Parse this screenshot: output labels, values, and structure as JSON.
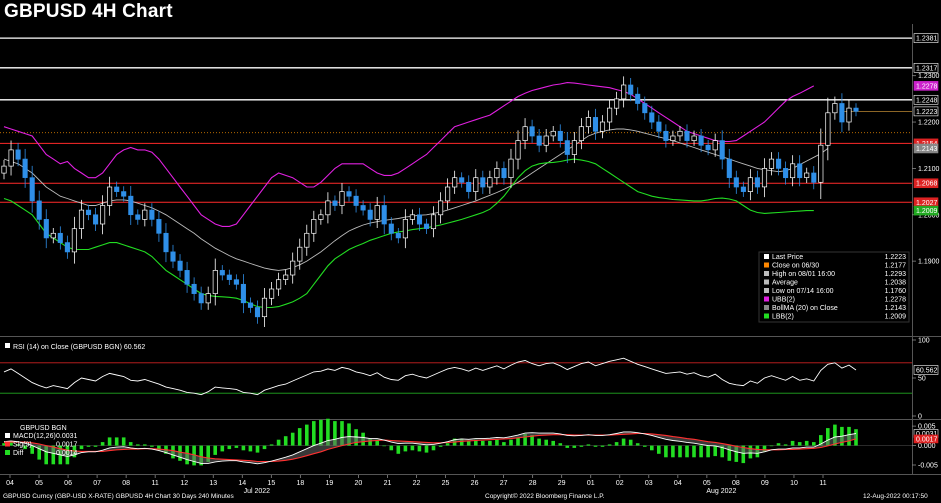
{
  "title": "GBPUSD 4H Chart",
  "footer": {
    "left": "GBPUSD Curncy (GBP-USD X-RATE) GBPUSD 4H Chart 30 Days 240 Minutes",
    "center": "Copyright© 2022 Bloomberg Finance L.P.",
    "right": "12-Aug-2022 00:17:50"
  },
  "colors": {
    "background": "#000000",
    "bull_candle": "#ffffff",
    "bear_candle": "#2f8fe8",
    "upper_band": "#e020e0",
    "middle_band": "#bbbbbb",
    "lower_band": "#22dd22",
    "horizontal_level": "#ff2a2a",
    "resistance_line": "#ffffff",
    "macd_line": "#ffffff",
    "signal_line": "#ff3030",
    "diff_bar": "#22dd22"
  },
  "chart_data": [
    {
      "type": "candlestick",
      "ylim": [
        1.1745,
        1.2405
      ],
      "yticks": [
        1.19,
        1.2,
        1.21,
        1.22,
        1.23
      ],
      "x_day_labels": [
        "04",
        "05",
        "06",
        "07",
        "08",
        "11",
        "12",
        "13",
        "14",
        "15",
        "18",
        "19",
        "20",
        "21",
        "22",
        "25",
        "26",
        "27",
        "28",
        "29",
        "01",
        "02",
        "03",
        "04",
        "05",
        "08",
        "09",
        "10",
        "11"
      ],
      "month_labels": [
        {
          "label": "Jul 2022",
          "day_index": 8.5
        },
        {
          "label": "Aug 2022",
          "day_index": 24.5
        }
      ],
      "resistance_lines": [
        1.2381,
        1.2317,
        1.2248
      ],
      "horizontal_levels": [
        1.2154,
        1.2068,
        1.2027
      ],
      "price_badges": [
        {
          "value": 1.2381,
          "label": "1.2381",
          "bg": "#000000",
          "fg": "#ffffff"
        },
        {
          "value": 1.2317,
          "label": "1.2317",
          "bg": "#000000",
          "fg": "#ffffff"
        },
        {
          "value": 1.2278,
          "label": "1.2278",
          "bg": "#cc22cc",
          "fg": "#ffffff"
        },
        {
          "value": 1.2248,
          "label": "1.2248",
          "bg": "#000000",
          "fg": "#ffffff"
        },
        {
          "value": 1.2223,
          "label": "1.2223",
          "bg": "#000000",
          "fg": "#ffffff"
        },
        {
          "value": 1.2154,
          "label": "1.2154",
          "bg": "#dd2222",
          "fg": "#ffffff"
        },
        {
          "value": 1.2143,
          "label": "1.2143",
          "bg": "#888888",
          "fg": "#000000"
        },
        {
          "value": 1.2068,
          "label": "1.2068",
          "bg": "#dd2222",
          "fg": "#ffffff"
        },
        {
          "value": 1.2027,
          "label": "1.2027",
          "bg": "#dd2222",
          "fg": "#ffffff"
        },
        {
          "value": 1.2009,
          "label": "1.2009",
          "bg": "#22aa22",
          "fg": "#ffffff"
        }
      ],
      "close_prev": 1.2177,
      "legend": [
        {
          "label": "Last Price",
          "value": "1.2223",
          "swatch": "#ffffff"
        },
        {
          "label": "Close on 06/30",
          "value": "1.2177",
          "swatch": "#ff8800"
        },
        {
          "label": "High on 08/01 16:00",
          "value": "1.2293",
          "swatch": "#bbbbbb"
        },
        {
          "label": "Average",
          "value": "1.2038",
          "swatch": "#bbbbbb"
        },
        {
          "label": "Low on 07/14 16:00",
          "value": "1.1760",
          "swatch": "#bbbbbb"
        },
        {
          "label": "UBB(2)",
          "value": "1.2278",
          "swatch": "#e020e0"
        },
        {
          "label": "BollMA (20)  on Close",
          "value": "1.2143",
          "swatch": "#888888"
        },
        {
          "label": "LBB(2)",
          "value": "1.2009",
          "swatch": "#22dd22"
        }
      ],
      "closes": [
        1.2105,
        1.214,
        1.212,
        1.208,
        1.203,
        1.199,
        1.195,
        1.196,
        1.194,
        1.192,
        1.197,
        1.201,
        1.2,
        1.198,
        1.202,
        1.206,
        1.205,
        1.204,
        1.2,
        1.199,
        1.201,
        1.199,
        1.196,
        1.192,
        1.19,
        1.188,
        1.185,
        1.183,
        1.181,
        1.183,
        1.188,
        1.187,
        1.186,
        1.185,
        1.181,
        1.18,
        1.178,
        1.182,
        1.184,
        1.186,
        1.187,
        1.19,
        1.193,
        1.196,
        1.199,
        1.2,
        1.203,
        1.202,
        1.205,
        1.204,
        1.202,
        1.201,
        1.199,
        1.202,
        1.198,
        1.196,
        1.195,
        1.199,
        1.2,
        1.198,
        1.197,
        1.2,
        1.203,
        1.206,
        1.208,
        1.207,
        1.205,
        1.208,
        1.206,
        1.208,
        1.21,
        1.208,
        1.212,
        1.216,
        1.219,
        1.217,
        1.215,
        1.217,
        1.218,
        1.216,
        1.213,
        1.216,
        1.219,
        1.221,
        1.218,
        1.22,
        1.223,
        1.225,
        1.228,
        1.226,
        1.224,
        1.222,
        1.22,
        1.218,
        1.216,
        1.217,
        1.218,
        1.216,
        1.217,
        1.215,
        1.214,
        1.216,
        1.212,
        1.208,
        1.206,
        1.205,
        1.208,
        1.206,
        1.21,
        1.212,
        1.21,
        1.208,
        1.211,
        1.208,
        1.209,
        1.207,
        1.215,
        1.222,
        1.224,
        1.22,
        1.223,
        1.2223
      ],
      "upper_band": [
        1.219,
        1.2185,
        1.218,
        1.2175,
        1.217,
        1.215,
        1.213,
        1.212,
        1.211,
        1.2115,
        1.21,
        1.209,
        1.208,
        1.208,
        1.209,
        1.211,
        1.213,
        1.214,
        1.2145,
        1.214,
        1.214,
        1.2135,
        1.212,
        1.21,
        1.208,
        1.206,
        1.204,
        1.202,
        1.2,
        1.199,
        1.198,
        1.1975,
        1.1975,
        1.198,
        1.2,
        1.202,
        1.204,
        1.206,
        1.208,
        1.209,
        1.2085,
        1.208,
        1.207,
        1.206,
        1.206,
        1.207,
        1.2085,
        1.21,
        1.211,
        1.211,
        1.211,
        1.211,
        1.21,
        1.209,
        1.2085,
        1.2085,
        1.209,
        1.21,
        1.211,
        1.212,
        1.213,
        1.2145,
        1.216,
        1.2175,
        1.219,
        1.2195,
        1.22,
        1.2205,
        1.221,
        1.2215,
        1.2225,
        1.2235,
        1.2245,
        1.2255,
        1.2262,
        1.2268,
        1.2272,
        1.2276,
        1.228,
        1.2282,
        1.2285,
        1.2284,
        1.2282,
        1.228,
        1.2278,
        1.2276,
        1.2274,
        1.227,
        1.2266,
        1.226,
        1.225,
        1.224,
        1.223,
        1.222,
        1.221,
        1.22,
        1.219,
        1.218,
        1.2175,
        1.217,
        1.2165,
        1.216,
        1.2158,
        1.2158,
        1.216,
        1.217,
        1.218,
        1.219,
        1.22,
        1.2215,
        1.223,
        1.2245,
        1.2255,
        1.2262,
        1.227,
        1.2278
      ],
      "middle_band": [
        1.212,
        1.2115,
        1.211,
        1.21,
        1.209,
        1.2075,
        1.206,
        1.205,
        1.204,
        1.2035,
        1.203,
        1.2025,
        1.202,
        1.202,
        1.2025,
        1.203,
        1.2032,
        1.2032,
        1.203,
        1.2025,
        1.202,
        1.2015,
        1.2008,
        1.2,
        1.199,
        1.198,
        1.197,
        1.196,
        1.1948,
        1.1938,
        1.1928,
        1.192,
        1.1912,
        1.1905,
        1.19,
        1.1895,
        1.189,
        1.1885,
        1.1882,
        1.188,
        1.1882,
        1.1886,
        1.1892,
        1.19,
        1.191,
        1.192,
        1.1932,
        1.1944,
        1.1955,
        1.1965,
        1.1972,
        1.1978,
        1.1982,
        1.1985,
        1.1988,
        1.199,
        1.1992,
        1.1995,
        1.1997,
        1.1999,
        1.2,
        1.2003,
        1.2006,
        1.201,
        1.2015,
        1.202,
        1.2025,
        1.203,
        1.2036,
        1.2042,
        1.2048,
        1.2055,
        1.2062,
        1.207,
        1.208,
        1.209,
        1.21,
        1.211,
        1.212,
        1.213,
        1.214,
        1.215,
        1.216,
        1.217,
        1.2176,
        1.218,
        1.2183,
        1.2185,
        1.2185,
        1.2183,
        1.218,
        1.2176,
        1.2172,
        1.2168,
        1.2164,
        1.216,
        1.2155,
        1.215,
        1.2145,
        1.214,
        1.2135,
        1.213,
        1.2125,
        1.212,
        1.2115,
        1.211,
        1.2105,
        1.21,
        1.2097,
        1.2095,
        1.2093,
        1.2095,
        1.21,
        1.2108,
        1.2116,
        1.2124,
        1.2132,
        1.2143
      ],
      "lower_band": [
        1.2035,
        1.203,
        1.202,
        1.201,
        1.2,
        1.198,
        1.196,
        1.195,
        1.194,
        1.193,
        1.1925,
        1.1925,
        1.1925,
        1.193,
        1.1935,
        1.194,
        1.194,
        1.1935,
        1.193,
        1.1925,
        1.192,
        1.191,
        1.1895,
        1.188,
        1.187,
        1.186,
        1.185,
        1.184,
        1.183,
        1.1826,
        1.1824,
        1.1823,
        1.1822,
        1.182,
        1.1815,
        1.1808,
        1.1802,
        1.18,
        1.18,
        1.1802,
        1.1807,
        1.1812,
        1.182,
        1.183,
        1.185,
        1.187,
        1.189,
        1.1905,
        1.1915,
        1.1925,
        1.1932,
        1.1938,
        1.1945,
        1.195,
        1.1955,
        1.196,
        1.1963,
        1.1965,
        1.1968,
        1.197,
        1.1972,
        1.1975,
        1.1978,
        1.1982,
        1.1986,
        1.199,
        1.1995,
        1.2,
        1.2005,
        1.2012,
        1.2025,
        1.204,
        1.206,
        1.208,
        1.2095,
        1.2105,
        1.211,
        1.2112,
        1.2113,
        1.2115,
        1.2118,
        1.212,
        1.2118,
        1.2115,
        1.211,
        1.21,
        1.209,
        1.208,
        1.207,
        1.206,
        1.205,
        1.2045,
        1.204,
        1.2037,
        1.2035,
        1.2033,
        1.2032,
        1.2031,
        1.203,
        1.203,
        1.2032,
        1.2035,
        1.2036,
        1.2034,
        1.203,
        1.202,
        1.201,
        1.2005,
        1.2003,
        1.2004,
        1.2005,
        1.2006,
        1.2007,
        1.2008,
        1.2009,
        1.2009
      ]
    },
    {
      "type": "line",
      "title": "RSI (14)  on Close (GBPUSD BGN) 60.562",
      "ylim": [
        0,
        100
      ],
      "yticks": [
        0,
        50,
        100
      ],
      "levels": [
        70,
        30
      ],
      "last_value": "60.562",
      "values": [
        58,
        62,
        56,
        50,
        44,
        40,
        37,
        40,
        38,
        36,
        44,
        50,
        48,
        46,
        52,
        56,
        54,
        52,
        47,
        46,
        48,
        45,
        42,
        38,
        36,
        34,
        31,
        30,
        28,
        32,
        38,
        37,
        36,
        35,
        31,
        30,
        28,
        34,
        37,
        40,
        42,
        46,
        50,
        54,
        58,
        59,
        62,
        60,
        64,
        62,
        58,
        56,
        53,
        57,
        51,
        48,
        47,
        53,
        55,
        52,
        50,
        54,
        58,
        62,
        64,
        62,
        59,
        63,
        60,
        63,
        66,
        62,
        67,
        71,
        73,
        69,
        66,
        69,
        70,
        66,
        61,
        65,
        69,
        71,
        66,
        69,
        72,
        74,
        76,
        72,
        68,
        65,
        62,
        59,
        56,
        57,
        58,
        55,
        57,
        53,
        51,
        55,
        48,
        43,
        41,
        40,
        46,
        43,
        50,
        53,
        50,
        47,
        52,
        47,
        49,
        46,
        60,
        68,
        70,
        63,
        67,
        60.562
      ]
    },
    {
      "type": "line",
      "title": "GBPUSD BGN",
      "ylim": [
        -0.0068,
        0.0058
      ],
      "yticks": [
        -0.005,
        0.0,
        0.005
      ],
      "legend": [
        {
          "label": "MACD(12,26)",
          "value": "0.0031"
        },
        {
          "label": "Sig(9)",
          "value": "0.0017"
        },
        {
          "label": "Diff",
          "value": "0.0014"
        }
      ],
      "badges": [
        {
          "value": 0.0031,
          "label": "0.0031",
          "bg": "#000000",
          "fg": "#ffffff"
        },
        {
          "value": 0.0017,
          "label": "0.0017",
          "bg": "#dd2222",
          "fg": "#ffffff"
        }
      ],
      "macd": [
        0.001,
        0.0012,
        0.001,
        0.0006,
        0.0,
        -0.0008,
        -0.0016,
        -0.002,
        -0.0024,
        -0.0028,
        -0.0024,
        -0.0018,
        -0.0016,
        -0.0016,
        -0.0012,
        -0.0006,
        -0.0004,
        -0.0003,
        -0.0006,
        -0.0008,
        -0.0007,
        -0.0009,
        -0.0013,
        -0.0018,
        -0.0024,
        -0.003,
        -0.0036,
        -0.0041,
        -0.0046,
        -0.0046,
        -0.0042,
        -0.004,
        -0.0039,
        -0.0039,
        -0.0042,
        -0.0044,
        -0.0047,
        -0.0044,
        -0.004,
        -0.0035,
        -0.003,
        -0.0024,
        -0.0016,
        -0.0008,
        0.0,
        0.0006,
        0.0013,
        0.0016,
        0.0021,
        0.0023,
        0.0022,
        0.0021,
        0.0018,
        0.0018,
        0.0014,
        0.0009,
        0.0005,
        0.0006,
        0.0006,
        0.0004,
        0.0002,
        0.0003,
        0.0006,
        0.001,
        0.0015,
        0.0017,
        0.0016,
        0.0018,
        0.0018,
        0.0019,
        0.0021,
        0.002,
        0.0023,
        0.0027,
        0.0032,
        0.0033,
        0.0032,
        0.0032,
        0.0032,
        0.003,
        0.0026,
        0.0025,
        0.0026,
        0.0028,
        0.0026,
        0.0026,
        0.0028,
        0.0031,
        0.0035,
        0.0035,
        0.0033,
        0.003,
        0.0026,
        0.0021,
        0.0016,
        0.0013,
        0.0011,
        0.0008,
        0.0006,
        0.0003,
        0.0,
        -0.0001,
        -0.0005,
        -0.0011,
        -0.0016,
        -0.002,
        -0.0019,
        -0.002,
        -0.0016,
        -0.0011,
        -0.0009,
        -0.0009,
        -0.0006,
        -0.0006,
        -0.0004,
        -0.0004,
        0.0004,
        0.0014,
        0.0022,
        0.0024,
        0.0028,
        0.0031
      ],
      "signal": [
        0.0008,
        0.0009,
        0.0009,
        0.0009,
        0.0007,
        0.0004,
        0.0,
        -0.0004,
        -0.0008,
        -0.0012,
        -0.0014,
        -0.0015,
        -0.0015,
        -0.0015,
        -0.0015,
        -0.0013,
        -0.0011,
        -0.001,
        -0.0009,
        -0.0009,
        -0.0008,
        -0.0008,
        -0.0009,
        -0.0011,
        -0.0013,
        -0.0017,
        -0.002,
        -0.0024,
        -0.0029,
        -0.0032,
        -0.0034,
        -0.0035,
        -0.0036,
        -0.0037,
        -0.0038,
        -0.0039,
        -0.0041,
        -0.0041,
        -0.0041,
        -0.004,
        -0.0038,
        -0.0035,
        -0.0031,
        -0.0026,
        -0.0021,
        -0.0016,
        -0.001,
        -0.0005,
        0.0,
        0.0004,
        0.0008,
        0.001,
        0.0012,
        0.0013,
        0.0014,
        0.0013,
        0.0012,
        0.0011,
        0.001,
        0.0009,
        0.0008,
        0.0007,
        0.0007,
        0.0008,
        0.0009,
        0.0011,
        0.0012,
        0.0013,
        0.0014,
        0.0015,
        0.0016,
        0.0017,
        0.0018,
        0.002,
        0.0022,
        0.0024,
        0.0026,
        0.0027,
        0.0028,
        0.0028,
        0.0028,
        0.0027,
        0.0027,
        0.0027,
        0.0027,
        0.0027,
        0.0027,
        0.0028,
        0.0029,
        0.003,
        0.0031,
        0.0031,
        0.003,
        0.0028,
        0.0026,
        0.0023,
        0.0021,
        0.0018,
        0.0016,
        0.0013,
        0.001,
        0.0008,
        0.0005,
        0.0002,
        -0.0002,
        -0.0005,
        -0.0008,
        -0.001,
        -0.0011,
        -0.0011,
        -0.0011,
        -0.001,
        -0.001,
        -0.0009,
        -0.0008,
        -0.0007,
        -0.0005,
        -0.0001,
        0.0004,
        0.0008,
        0.0012,
        0.0017
      ]
    }
  ]
}
